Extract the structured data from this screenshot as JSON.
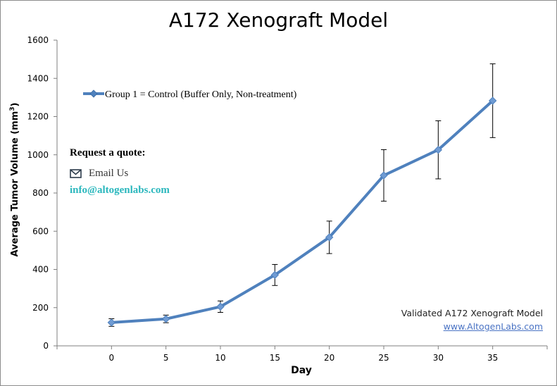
{
  "chart_data": {
    "type": "line",
    "title": "A172 Xenograft Model",
    "ylabel_main": "Average Tumor Volume (mm",
    "ylabel_sup": "3",
    "ylabel_end": ")",
    "xlabel": "Day",
    "x": [
      0,
      5,
      10,
      15,
      20,
      25,
      30,
      35
    ],
    "xlim": [
      -5,
      40
    ],
    "ylim": [
      0,
      1600
    ],
    "yticks": [
      0,
      200,
      400,
      600,
      800,
      1000,
      1200,
      1400,
      1600
    ],
    "series": [
      {
        "name": "Group 1 = Control (Buffer Only, Non-treatment)",
        "values": [
          122,
          141,
          205,
          371,
          568,
          892,
          1026,
          1283
        ],
        "errors": [
          20,
          20,
          30,
          55,
          85,
          135,
          152,
          193
        ],
        "color": "#4f81bd"
      }
    ],
    "legend_position": "top-left",
    "grid": false
  },
  "promo": {
    "quote": "Request a quote:",
    "email_label": "Email Us",
    "email_address": "info@altogenlabs.com",
    "envelope_icon": "envelope-icon"
  },
  "note": {
    "line1": "Validated A172 Xenograft Model",
    "line2": "www.AltogenLabs.com"
  },
  "colors": {
    "series": "#4f81bd",
    "email": "#2ab7bd",
    "link": "#4a73c4"
  }
}
